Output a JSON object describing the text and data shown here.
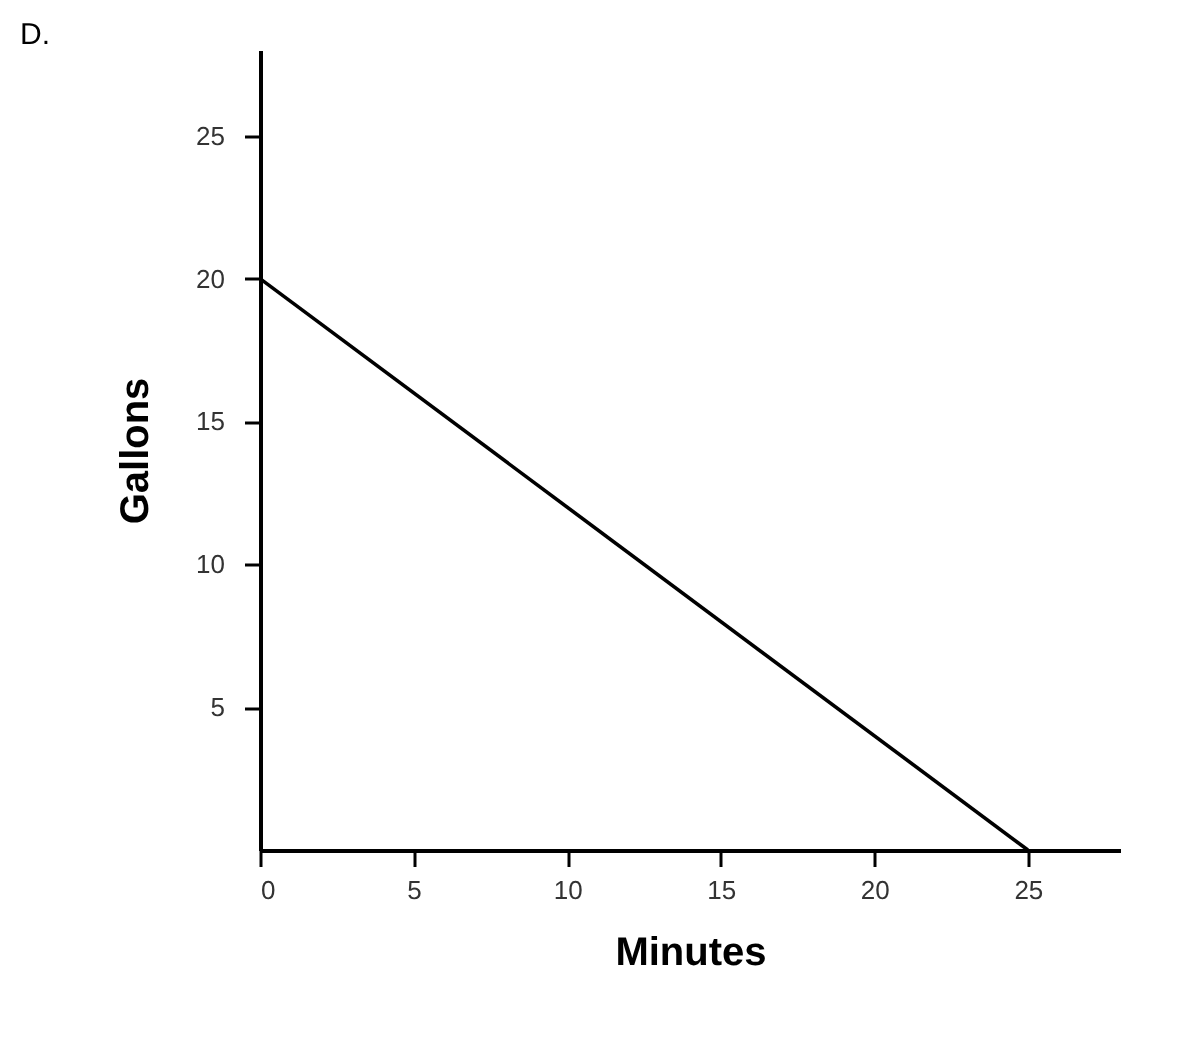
{
  "chart_data": {
    "type": "line",
    "title": "D.",
    "xlabel": "Minutes",
    "ylabel": "Gallons",
    "x": [
      0,
      25
    ],
    "series": [
      {
        "color": "#000000",
        "values": [
          20,
          0
        ]
      }
    ],
    "xlim": [
      0,
      28
    ],
    "ylim": [
      0,
      28
    ],
    "xticks": [
      0,
      5,
      10,
      15,
      20,
      25
    ],
    "yticks": [
      5,
      10,
      15,
      20,
      25
    ],
    "grid": false,
    "marker": "none",
    "line_style": "solid"
  }
}
